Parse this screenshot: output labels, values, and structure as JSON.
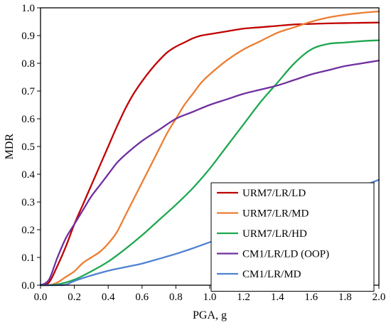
{
  "chart_data": {
    "type": "line",
    "xlabel": "PGA, g",
    "ylabel": "MDR",
    "xlim": [
      0.0,
      2.0
    ],
    "ylim": [
      0.0,
      1.0
    ],
    "x_ticks": [
      "0.0",
      "0.2",
      "0.4",
      "0.6",
      "0.8",
      "1.0",
      "1.2",
      "1.4",
      "1.6",
      "1.8",
      "2.0"
    ],
    "y_ticks": [
      "0.0",
      "0.1",
      "0.2",
      "0.3",
      "0.4",
      "0.5",
      "0.6",
      "0.7",
      "0.8",
      "0.9",
      "1.0"
    ],
    "grid": false,
    "legend_position": "bottom-right",
    "series": [
      {
        "name": "URM7/LR/LD",
        "color": "#C00000",
        "x": [
          0.0,
          0.05,
          0.1,
          0.15,
          0.2,
          0.25,
          0.3,
          0.35,
          0.4,
          0.45,
          0.5,
          0.55,
          0.6,
          0.65,
          0.7,
          0.75,
          0.8,
          0.85,
          0.9,
          0.95,
          1.0,
          1.1,
          1.2,
          1.3,
          1.4,
          1.5,
          1.6,
          1.7,
          1.8,
          1.9,
          2.0
        ],
        "y": [
          0.0,
          0.01,
          0.07,
          0.14,
          0.22,
          0.29,
          0.36,
          0.43,
          0.5,
          0.57,
          0.635,
          0.69,
          0.735,
          0.775,
          0.81,
          0.84,
          0.86,
          0.875,
          0.89,
          0.9,
          0.905,
          0.915,
          0.925,
          0.93,
          0.935,
          0.94,
          0.942,
          0.944,
          0.945,
          0.946,
          0.947
        ]
      },
      {
        "name": "URM7/LR/MD",
        "color": "#ED7D31",
        "x": [
          0.0,
          0.05,
          0.1,
          0.15,
          0.2,
          0.25,
          0.3,
          0.35,
          0.4,
          0.45,
          0.5,
          0.55,
          0.6,
          0.65,
          0.7,
          0.75,
          0.8,
          0.85,
          0.9,
          0.95,
          1.0,
          1.1,
          1.2,
          1.3,
          1.4,
          1.5,
          1.6,
          1.7,
          1.8,
          1.9,
          2.0
        ],
        "y": [
          0.0,
          0.0,
          0.01,
          0.03,
          0.05,
          0.08,
          0.1,
          0.12,
          0.15,
          0.19,
          0.25,
          0.31,
          0.37,
          0.43,
          0.49,
          0.55,
          0.6,
          0.65,
          0.69,
          0.73,
          0.76,
          0.81,
          0.85,
          0.88,
          0.91,
          0.93,
          0.95,
          0.965,
          0.975,
          0.982,
          0.987
        ]
      },
      {
        "name": "URM7/LR/HD",
        "color": "#1FA750",
        "x": [
          0.0,
          0.1,
          0.2,
          0.3,
          0.4,
          0.5,
          0.6,
          0.7,
          0.8,
          0.9,
          1.0,
          1.1,
          1.2,
          1.3,
          1.4,
          1.5,
          1.6,
          1.7,
          1.8,
          1.9,
          2.0
        ],
        "y": [
          0.0,
          0.003,
          0.02,
          0.05,
          0.085,
          0.13,
          0.18,
          0.235,
          0.29,
          0.35,
          0.42,
          0.5,
          0.58,
          0.66,
          0.73,
          0.8,
          0.85,
          0.87,
          0.875,
          0.88,
          0.883
        ]
      },
      {
        "name": "CM1/LR/LD (OOP)",
        "color": "#7030A0",
        "x": [
          0.0,
          0.05,
          0.1,
          0.15,
          0.2,
          0.25,
          0.3,
          0.35,
          0.4,
          0.45,
          0.5,
          0.6,
          0.7,
          0.8,
          0.9,
          1.0,
          1.1,
          1.2,
          1.3,
          1.4,
          1.5,
          1.6,
          1.7,
          1.8,
          1.9,
          2.0
        ],
        "y": [
          0.0,
          0.02,
          0.1,
          0.17,
          0.22,
          0.27,
          0.32,
          0.36,
          0.4,
          0.44,
          0.47,
          0.52,
          0.56,
          0.6,
          0.625,
          0.65,
          0.67,
          0.69,
          0.705,
          0.72,
          0.74,
          0.76,
          0.775,
          0.79,
          0.8,
          0.81
        ]
      },
      {
        "name": "CM1/LR/MD",
        "color": "#4F81D3",
        "x": [
          0.0,
          0.1,
          0.15,
          0.2,
          0.3,
          0.4,
          0.5,
          0.6,
          0.7,
          0.8,
          0.9,
          1.0,
          1.1,
          1.2,
          1.3,
          1.4,
          1.5,
          1.6,
          1.7,
          1.8,
          1.9,
          2.0
        ],
        "y": [
          0.0,
          0.0,
          0.002,
          0.015,
          0.035,
          0.052,
          0.065,
          0.078,
          0.095,
          0.113,
          0.133,
          0.155,
          0.175,
          0.198,
          0.22,
          0.243,
          0.267,
          0.29,
          0.312,
          0.335,
          0.357,
          0.38
        ]
      }
    ]
  }
}
